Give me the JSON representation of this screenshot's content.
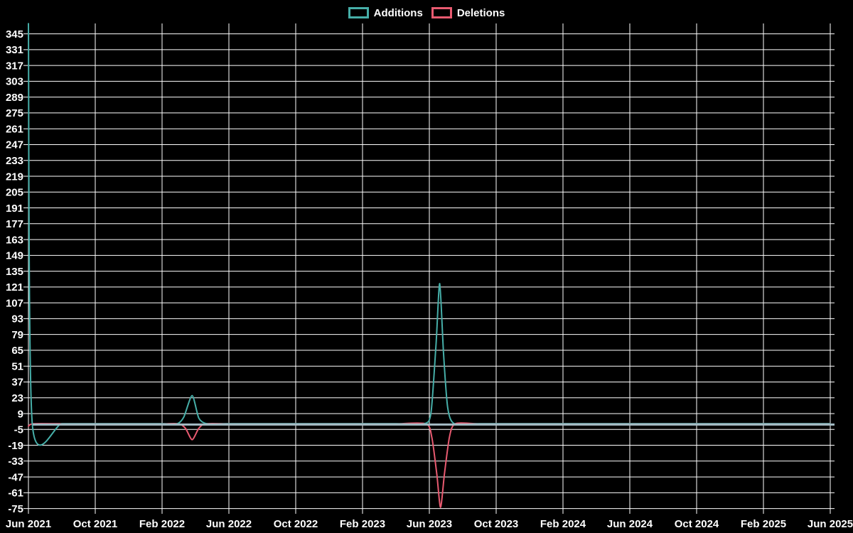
{
  "chart_data": {
    "type": "line",
    "title": "",
    "legend_position": "top",
    "background": "#000000",
    "grid": true,
    "grid_color": "#ffffff",
    "text_color": "#ffffff",
    "zero_line_color": "#a5bcc5",
    "x_ticks": [
      "Jun 2021",
      "Oct 2021",
      "Feb 2022",
      "Jun 2022",
      "Oct 2022",
      "Feb 2023",
      "Jun 2023",
      "Oct 2023",
      "Feb 2024",
      "Jun 2024",
      "Oct 2024",
      "Feb 2025",
      "Jun 2025"
    ],
    "months_between_ticks": 4,
    "y_ticks": [
      345,
      331,
      317,
      303,
      289,
      275,
      261,
      247,
      233,
      219,
      205,
      191,
      177,
      163,
      149,
      135,
      121,
      107,
      93,
      79,
      65,
      51,
      37,
      23,
      9,
      -5,
      -19,
      -33,
      -47,
      -61,
      -75
    ],
    "ylim": [
      -75,
      354
    ],
    "series": [
      {
        "name": "Additions",
        "color": "#46aea8",
        "baseline": 0,
        "key_points": [
          {
            "x": "Jun 2021",
            "y": 354
          },
          {
            "x": "Apr 2022",
            "y": 25
          },
          {
            "x": "Jul 2023",
            "y": 124
          }
        ],
        "render_points": [
          [
            0,
            354
          ],
          [
            0.23,
            0
          ],
          [
            2,
            0
          ],
          [
            4,
            0
          ],
          [
            6,
            0
          ],
          [
            8,
            0
          ],
          [
            8.9,
            0
          ],
          [
            9.3,
            6
          ],
          [
            9.8,
            25
          ],
          [
            10.2,
            5
          ],
          [
            10.7,
            0
          ],
          [
            12,
            0
          ],
          [
            14,
            0
          ],
          [
            16,
            0
          ],
          [
            18,
            0
          ],
          [
            20,
            0
          ],
          [
            22,
            0
          ],
          [
            23.7,
            0
          ],
          [
            24.1,
            10
          ],
          [
            24.4,
            70
          ],
          [
            24.62,
            124
          ],
          [
            24.85,
            62
          ],
          [
            25.1,
            14
          ],
          [
            25.5,
            0
          ],
          [
            27,
            0
          ],
          [
            30,
            0
          ],
          [
            33,
            0
          ],
          [
            36,
            0
          ],
          [
            39,
            0
          ],
          [
            42,
            0
          ],
          [
            45,
            0
          ],
          [
            48,
            0
          ]
        ]
      },
      {
        "name": "Deletions",
        "color": "#e85a70",
        "baseline": 0,
        "key_points": [
          {
            "x": "Jun 2021",
            "y": -2
          },
          {
            "x": "Apr 2022",
            "y": -14
          },
          {
            "x": "Jul 2023",
            "y": -74
          }
        ],
        "render_points": [
          [
            0,
            -2
          ],
          [
            0.3,
            0
          ],
          [
            2,
            0
          ],
          [
            4,
            0
          ],
          [
            6,
            0
          ],
          [
            8,
            0
          ],
          [
            9.0,
            0
          ],
          [
            9.4,
            -4
          ],
          [
            9.8,
            -14
          ],
          [
            10.2,
            -4
          ],
          [
            10.6,
            0
          ],
          [
            12,
            0
          ],
          [
            14,
            0
          ],
          [
            16,
            0
          ],
          [
            18,
            0
          ],
          [
            20,
            0
          ],
          [
            22,
            0
          ],
          [
            23.8,
            0
          ],
          [
            24.15,
            -12
          ],
          [
            24.45,
            -45
          ],
          [
            24.67,
            -74
          ],
          [
            24.9,
            -45
          ],
          [
            25.2,
            -12
          ],
          [
            25.55,
            0
          ],
          [
            27,
            0
          ],
          [
            30,
            0
          ],
          [
            33,
            0
          ],
          [
            36,
            0
          ],
          [
            39,
            0
          ],
          [
            42,
            0
          ],
          [
            45,
            0
          ],
          [
            48,
            0
          ]
        ]
      }
    ],
    "notes": "render_points x values are months after Jun 2021; values are additions/deletions per period, baseline 0 elsewhere"
  }
}
